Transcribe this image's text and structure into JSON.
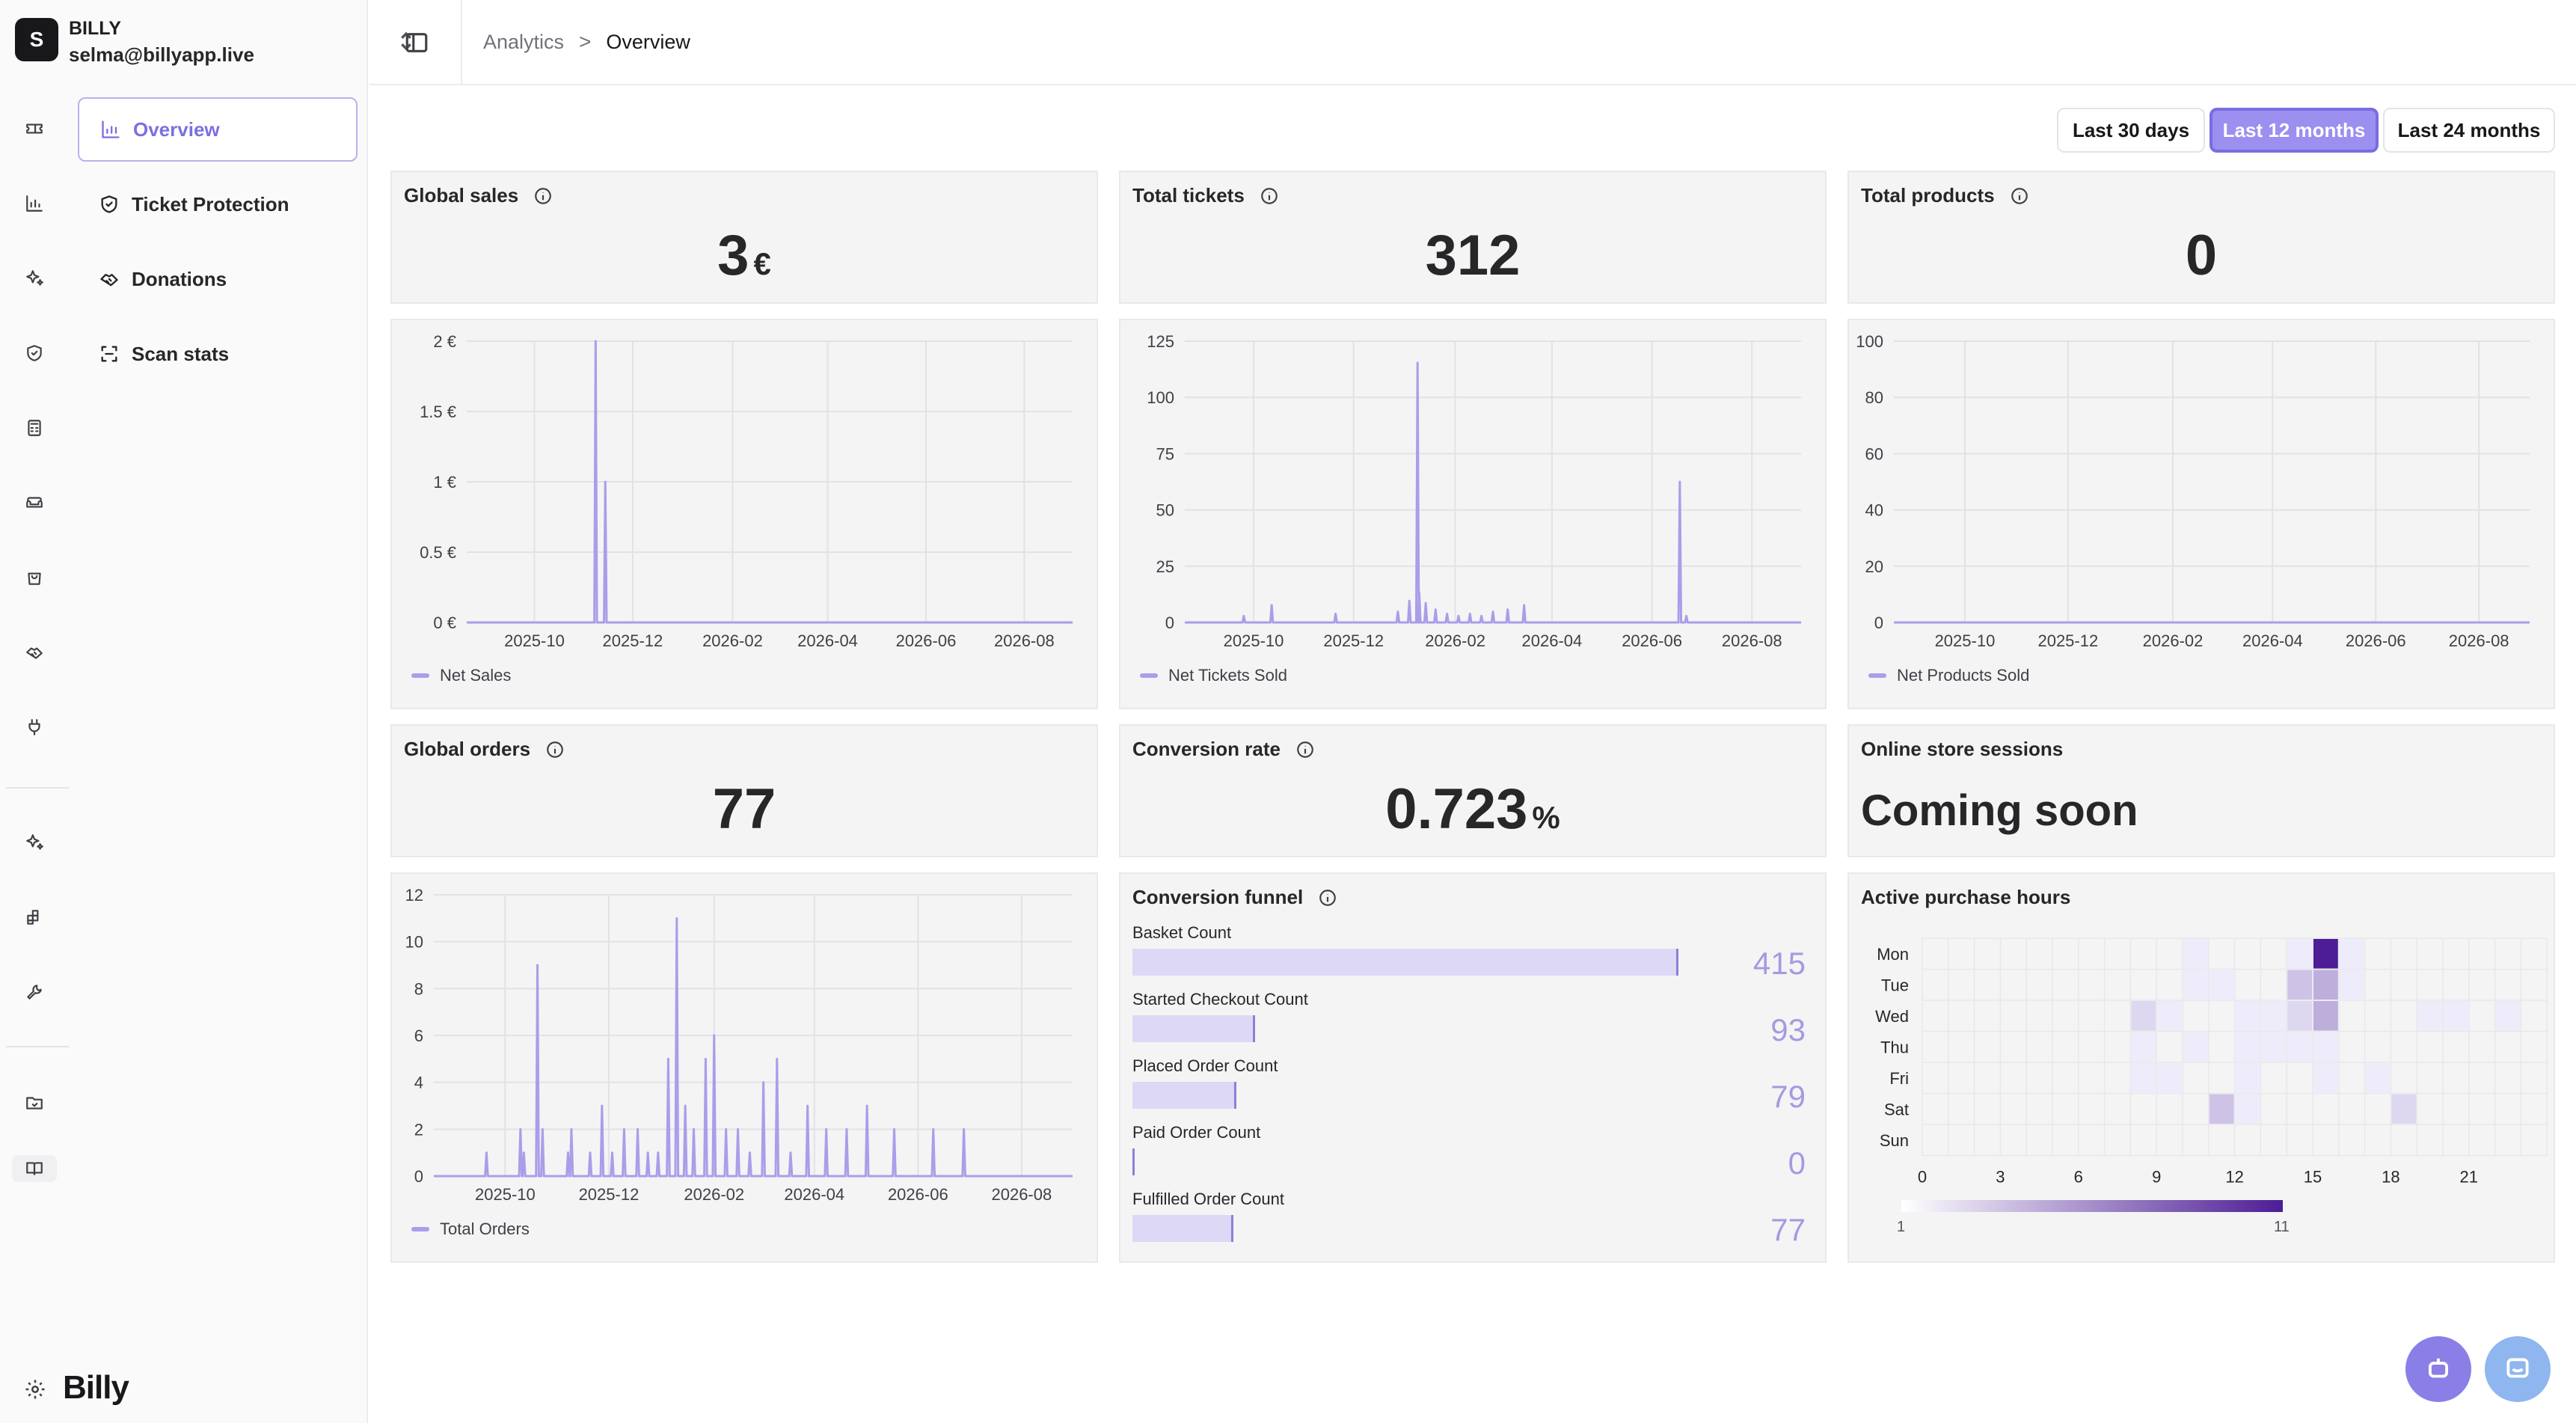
{
  "account": {
    "avatar_letter": "S",
    "name": "BILLY",
    "email": "selma@billyapp.live"
  },
  "rail_icons": [
    "ticket-icon",
    "chart-icon",
    "sparkles-icon",
    "shield-icon",
    "calculator-icon",
    "sofa-icon",
    "bag-icon",
    "handshake-icon",
    "plug-icon",
    "sparkles-icon",
    "blocks-icon",
    "wrench-icon",
    "folder-icon",
    "book-icon"
  ],
  "nav": [
    {
      "label": "Overview",
      "icon": "bar-chart-icon",
      "active": true
    },
    {
      "label": "Ticket Protection",
      "icon": "shield-icon",
      "active": false
    },
    {
      "label": "Donations",
      "icon": "handshake-icon",
      "active": false
    },
    {
      "label": "Scan stats",
      "icon": "scan-icon",
      "active": false
    }
  ],
  "brand": "Billy",
  "breadcrumb": {
    "parent": "Analytics",
    "separator": ">",
    "current": "Overview"
  },
  "ranges": [
    {
      "label": "Last 30 days",
      "active": false
    },
    {
      "label": "Last 12 months",
      "active": true
    },
    {
      "label": "Last 24 months",
      "active": false
    }
  ],
  "kpis": {
    "global_sales": {
      "title": "Global sales",
      "value": "3",
      "unit": "€"
    },
    "total_tickets": {
      "title": "Total tickets",
      "value": "312"
    },
    "total_products": {
      "title": "Total products",
      "value": "0"
    },
    "global_orders": {
      "title": "Global orders",
      "value": "77"
    },
    "conversion_rate": {
      "title": "Conversion rate",
      "value": "0.723",
      "unit": "%"
    },
    "online_sessions": {
      "title": "Online store sessions",
      "value": "Coming soon"
    }
  },
  "funnel": {
    "title": "Conversion funnel",
    "rows": [
      {
        "label": "Basket Count",
        "value": 415
      },
      {
        "label": "Started Checkout Count",
        "value": 93
      },
      {
        "label": "Placed Order Count",
        "value": 79
      },
      {
        "label": "Paid Order Count",
        "value": 0
      },
      {
        "label": "Fulfilled Order Count",
        "value": 77
      }
    ]
  },
  "heatmap_title": "Active purchase hours",
  "colors": {
    "accent": "#9b8ff0",
    "line": "#a99ee9",
    "card": "#f4f4f5",
    "heat_max": "#4c1d95"
  },
  "chart_data": [
    {
      "type": "line",
      "title": "",
      "series": [
        {
          "name": "Net Sales",
          "x": [
            "2025-11-08",
            "2025-11-14"
          ],
          "values": [
            2,
            1
          ]
        }
      ],
      "x_ticks": [
        "2025-10",
        "2025-12",
        "2026-02",
        "2026-04",
        "2026-06",
        "2026-08"
      ],
      "y_ticks": [
        "0 €",
        "0.5 €",
        "1 €",
        "1.5 €",
        "2 €"
      ],
      "ylim": [
        0,
        2
      ],
      "xlim": [
        "2025-08-20",
        "2026-08-31"
      ],
      "grid": true,
      "legend": "bottom-left"
    },
    {
      "type": "line",
      "title": "",
      "series": [
        {
          "name": "Net Tickets Sold",
          "x": [
            "2025-09-25",
            "2025-10-12",
            "2025-11-20",
            "2025-12-28",
            "2026-01-04",
            "2026-01-09",
            "2026-01-10",
            "2026-01-14",
            "2026-01-20",
            "2026-01-27",
            "2026-02-03",
            "2026-02-10",
            "2026-02-17",
            "2026-02-24",
            "2026-03-05",
            "2026-03-15",
            "2026-06-18",
            "2026-06-22"
          ],
          "values": [
            3,
            8,
            4,
            5,
            10,
            120,
            14,
            9,
            6,
            4,
            3,
            4,
            3,
            5,
            6,
            8,
            65,
            3
          ]
        }
      ],
      "x_ticks": [
        "2025-10",
        "2025-12",
        "2026-02",
        "2026-04",
        "2026-06",
        "2026-08"
      ],
      "y_ticks": [
        "0",
        "25",
        "50",
        "75",
        "100",
        "125"
      ],
      "ylim": [
        0,
        130
      ],
      "xlim": [
        "2025-08-20",
        "2026-08-31"
      ],
      "grid": true,
      "legend": "bottom-left"
    },
    {
      "type": "line",
      "title": "",
      "series": [
        {
          "name": "Net Products Sold",
          "x": [],
          "values": []
        }
      ],
      "x_ticks": [
        "2025-10",
        "2025-12",
        "2026-02",
        "2026-04",
        "2026-06",
        "2026-08"
      ],
      "y_ticks": [
        "0",
        "20",
        "40",
        "60",
        "80",
        "100"
      ],
      "ylim": [
        0,
        100
      ],
      "xlim": [
        "2025-08-20",
        "2026-08-31"
      ],
      "grid": true,
      "legend": "bottom-left"
    },
    {
      "type": "line",
      "title": "",
      "series": [
        {
          "name": "Total Orders",
          "x": [
            "2025-09-20",
            "2025-10-10",
            "2025-10-12",
            "2025-10-20",
            "2025-10-23",
            "2025-11-07",
            "2025-11-09",
            "2025-11-20",
            "2025-11-27",
            "2025-12-03",
            "2025-12-10",
            "2025-12-18",
            "2025-12-24",
            "2025-12-30",
            "2026-01-05",
            "2026-01-10",
            "2026-01-15",
            "2026-01-20",
            "2026-01-27",
            "2026-02-01",
            "2026-02-08",
            "2026-02-15",
            "2026-02-22",
            "2026-03-02",
            "2026-03-10",
            "2026-03-18",
            "2026-03-28",
            "2026-04-08",
            "2026-04-20",
            "2026-05-02",
            "2026-05-18",
            "2026-06-10",
            "2026-06-28"
          ],
          "values": [
            1,
            2,
            1,
            9,
            2,
            1,
            2,
            1,
            3,
            1,
            2,
            2,
            1,
            1,
            5,
            11,
            3,
            2,
            5,
            6,
            2,
            2,
            1,
            4,
            5,
            1,
            3,
            2,
            2,
            3,
            2,
            2,
            2
          ]
        }
      ],
      "x_ticks": [
        "2025-10",
        "2025-12",
        "2026-02",
        "2026-04",
        "2026-06",
        "2026-08"
      ],
      "y_ticks": [
        "0",
        "2",
        "4",
        "6",
        "8",
        "10",
        "12"
      ],
      "ylim": [
        0,
        12
      ],
      "xlim": [
        "2025-08-20",
        "2026-08-31"
      ],
      "grid": true,
      "legend": "bottom-left"
    },
    {
      "type": "heatmap",
      "title": "Active purchase hours",
      "rows": [
        "Mon",
        "Tue",
        "Wed",
        "Thu",
        "Fri",
        "Sat",
        "Sun"
      ],
      "x_ticks": [
        "0",
        "3",
        "6",
        "9",
        "12",
        "15",
        "18",
        "21"
      ],
      "scale": {
        "min_label": "1",
        "max_label": "11",
        "min": 1,
        "max": 11
      },
      "cells": [
        {
          "day": 0,
          "hour": 10,
          "v": 1
        },
        {
          "day": 0,
          "hour": 14,
          "v": 1
        },
        {
          "day": 0,
          "hour": 15,
          "v": 11
        },
        {
          "day": 0,
          "hour": 16,
          "v": 1
        },
        {
          "day": 1,
          "hour": 10,
          "v": 1
        },
        {
          "day": 1,
          "hour": 11,
          "v": 1
        },
        {
          "day": 1,
          "hour": 14,
          "v": 3
        },
        {
          "day": 1,
          "hour": 15,
          "v": 4
        },
        {
          "day": 1,
          "hour": 16,
          "v": 1
        },
        {
          "day": 2,
          "hour": 8,
          "v": 2
        },
        {
          "day": 2,
          "hour": 9,
          "v": 1
        },
        {
          "day": 2,
          "hour": 12,
          "v": 1
        },
        {
          "day": 2,
          "hour": 13,
          "v": 1
        },
        {
          "day": 2,
          "hour": 14,
          "v": 2
        },
        {
          "day": 2,
          "hour": 15,
          "v": 4
        },
        {
          "day": 2,
          "hour": 19,
          "v": 1
        },
        {
          "day": 2,
          "hour": 20,
          "v": 1
        },
        {
          "day": 2,
          "hour": 22,
          "v": 1
        },
        {
          "day": 3,
          "hour": 8,
          "v": 1
        },
        {
          "day": 3,
          "hour": 10,
          "v": 1
        },
        {
          "day": 3,
          "hour": 12,
          "v": 1
        },
        {
          "day": 3,
          "hour": 13,
          "v": 1
        },
        {
          "day": 3,
          "hour": 14,
          "v": 1
        },
        {
          "day": 3,
          "hour": 15,
          "v": 1
        },
        {
          "day": 4,
          "hour": 8,
          "v": 1
        },
        {
          "day": 4,
          "hour": 9,
          "v": 1
        },
        {
          "day": 4,
          "hour": 12,
          "v": 1
        },
        {
          "day": 4,
          "hour": 15,
          "v": 1
        },
        {
          "day": 4,
          "hour": 17,
          "v": 1
        },
        {
          "day": 5,
          "hour": 11,
          "v": 3
        },
        {
          "day": 5,
          "hour": 12,
          "v": 1
        },
        {
          "day": 5,
          "hour": 18,
          "v": 2
        }
      ]
    }
  ]
}
